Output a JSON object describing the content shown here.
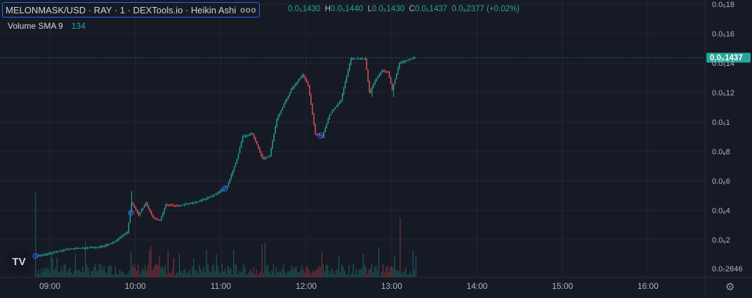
{
  "legend": {
    "symbol_title": "MELONMASK/USD · RAY · 1 · DEXTools.io · Heikin Ashi",
    "more": "ooo",
    "ohlc": {
      "o_label": "",
      "o_value": "0.0₅1430",
      "h_label": "H",
      "h_value": "0.0₅1440",
      "l_label": "L",
      "l_value": "0.0₅1430",
      "c_label": "C",
      "c_value": "0.0₅1437",
      "change": "0.0₈2377 (+0.02%)"
    },
    "volume_label": "Volume SMA 9",
    "volume_value": "134"
  },
  "logo_text": "TV",
  "settings_icon": "gear-icon",
  "colors": {
    "background": "#161a25",
    "up": "#26a69a",
    "down": "#ef5350",
    "grid": "#232632",
    "price_tag": "#26a69a",
    "marker": "#2962ff"
  },
  "chart_data": {
    "type": "candlestick",
    "chart_style": "Heikin Ashi",
    "price_unit": "1e-6 USD",
    "y_ticks": [
      {
        "value": 18,
        "label": "0.0₅18"
      },
      {
        "value": 16,
        "label": "0.0₅16"
      },
      {
        "value": 14,
        "label": "0.0₅14"
      },
      {
        "value": 12,
        "label": "0.0₅12"
      },
      {
        "value": 10,
        "label": "0.0₅1"
      },
      {
        "value": 8,
        "label": "0.0₆8"
      },
      {
        "value": 6,
        "label": "0.0₆6"
      },
      {
        "value": 4,
        "label": "0.0₆4"
      },
      {
        "value": 2,
        "label": "0.0₆2"
      },
      {
        "value": 0.26,
        "label": "0.0₇2646"
      }
    ],
    "current_price": {
      "value": 14.37,
      "label": "0.0₅1437"
    },
    "ylim": [
      0,
      19
    ],
    "x_ticks": [
      {
        "time": "09:00",
        "minutes": 540
      },
      {
        "time": "10:00",
        "minutes": 600
      },
      {
        "time": "11:00",
        "minutes": 660
      },
      {
        "time": "12:00",
        "minutes": 720
      },
      {
        "time": "13:00",
        "minutes": 780
      },
      {
        "time": "14:00",
        "minutes": 840
      },
      {
        "time": "15:00",
        "minutes": 900
      },
      {
        "time": "16:00",
        "minutes": 960
      }
    ],
    "xlim_minutes": [
      505,
      1000
    ],
    "series_range_minutes": [
      530,
      797
    ],
    "price_keypoints": [
      [
        530,
        0.9
      ],
      [
        537,
        1.0
      ],
      [
        555,
        1.4
      ],
      [
        575,
        1.5
      ],
      [
        585,
        1.8
      ],
      [
        595,
        2.5
      ],
      [
        598,
        4.5
      ],
      [
        600,
        4.2
      ],
      [
        603,
        3.7
      ],
      [
        608,
        4.5
      ],
      [
        613,
        3.5
      ],
      [
        618,
        3.3
      ],
      [
        622,
        4.4
      ],
      [
        630,
        4.3
      ],
      [
        645,
        4.6
      ],
      [
        655,
        5.0
      ],
      [
        665,
        5.6
      ],
      [
        672,
        7.5
      ],
      [
        676,
        9.0
      ],
      [
        683,
        9.2
      ],
      [
        690,
        7.5
      ],
      [
        695,
        7.7
      ],
      [
        700,
        10.2
      ],
      [
        710,
        12.2
      ],
      [
        718,
        13.2
      ],
      [
        722,
        12.5
      ],
      [
        727,
        9.2
      ],
      [
        732,
        9.0
      ],
      [
        737,
        10.5
      ],
      [
        745,
        11.5
      ],
      [
        752,
        14.3
      ],
      [
        762,
        14.3
      ],
      [
        765,
        12.0
      ],
      [
        769,
        12.8
      ],
      [
        774,
        13.5
      ],
      [
        778,
        13.4
      ],
      [
        781,
        12.2
      ],
      [
        786,
        14.0
      ],
      [
        797,
        14.4
      ]
    ],
    "price_spikes": [
      {
        "minutes": 597,
        "high": 5.3
      },
      {
        "minutes": 766,
        "low": 11.7
      },
      {
        "minutes": 781,
        "low": 11.7
      }
    ],
    "markers_minutes": [
      530,
      597,
      663,
      730
    ],
    "volume": {
      "baseline_label": "",
      "peaks": [
        {
          "minutes": 530,
          "value": 100,
          "color": "up"
        },
        {
          "minutes": 597,
          "value": 30,
          "color": "up"
        },
        {
          "minutes": 786,
          "value": 70,
          "color": "down"
        }
      ]
    }
  }
}
